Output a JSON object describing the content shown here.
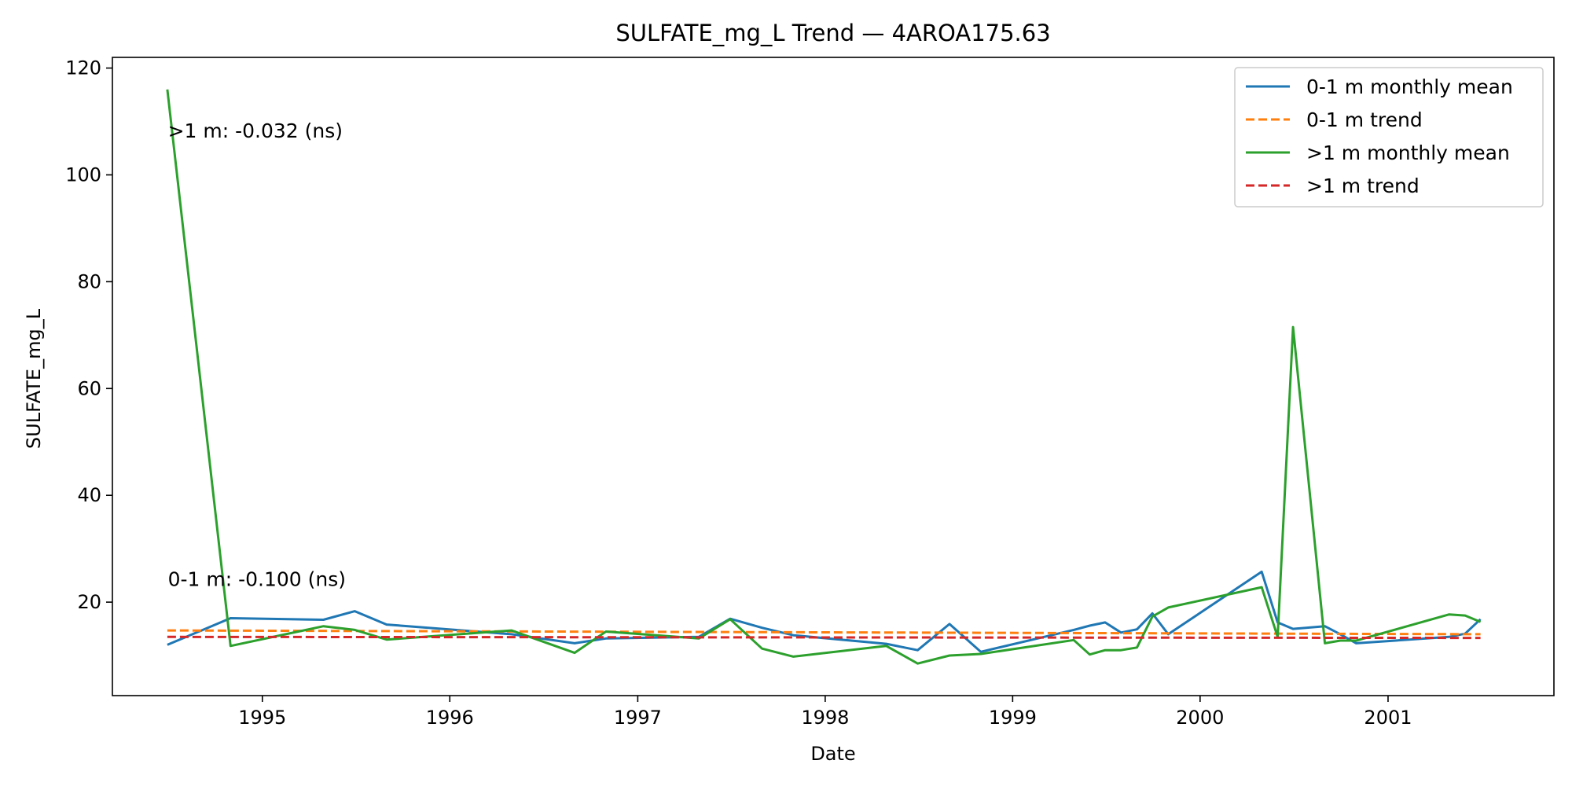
{
  "chart_data": {
    "type": "line",
    "title": "SULFATE_mg_L Trend — 4AROA175.63",
    "xlabel": "Date",
    "ylabel": "SULFATE_mg_L",
    "xlim": [
      "1994-03-15",
      "2001-11-20"
    ],
    "ylim": [
      2.5,
      122
    ],
    "xticks": [
      {
        "date": "1995-01-01",
        "label": "1995"
      },
      {
        "date": "1996-01-01",
        "label": "1996"
      },
      {
        "date": "1997-01-01",
        "label": "1997"
      },
      {
        "date": "1998-01-01",
        "label": "1998"
      },
      {
        "date": "1999-01-01",
        "label": "1999"
      },
      {
        "date": "2000-01-01",
        "label": "2000"
      },
      {
        "date": "2001-01-01",
        "label": "2001"
      }
    ],
    "yticks": [
      20,
      40,
      60,
      80,
      100,
      120
    ],
    "grid": false,
    "legend_position": "top-right",
    "annotations": [
      {
        "text": ">1 m: -0.032 (ns)",
        "x": "1994-07-01",
        "y": 107
      },
      {
        "text": "0-1 m: -0.100 (ns)",
        "x": "1994-07-01",
        "y": 23
      }
    ],
    "series": [
      {
        "name": "0-1 m monthly mean",
        "color": "#1f77b4",
        "style": "solid",
        "x": [
          "1994-06-30",
          "1994-10-31",
          "1995-04-30",
          "1995-06-30",
          "1995-08-31",
          "1996-04-30",
          "1996-08-31",
          "1996-10-31",
          "1997-04-30",
          "1997-06-30",
          "1997-08-31",
          "1997-10-31",
          "1998-04-30",
          "1998-06-30",
          "1998-08-31",
          "1998-10-31",
          "1999-04-30",
          "1999-05-31",
          "1999-06-30",
          "1999-07-31",
          "1999-08-31",
          "1999-09-30",
          "1999-10-31",
          "2000-04-30",
          "2000-05-31",
          "2000-06-30",
          "2000-08-31",
          "2000-09-30",
          "2000-10-31",
          "2001-04-30",
          "2001-05-31",
          "2001-06-30"
        ],
        "y": [
          12.0,
          17.0,
          16.7,
          18.3,
          15.8,
          14.0,
          12.3,
          13.2,
          13.5,
          16.9,
          15.2,
          13.8,
          12.2,
          11.0,
          15.9,
          10.7,
          14.8,
          15.6,
          16.2,
          14.3,
          14.9,
          17.9,
          14.0,
          25.7,
          16.2,
          15.0,
          15.5,
          14.0,
          12.3,
          13.5,
          14.1,
          16.8
        ]
      },
      {
        "name": "0-1 m trend",
        "color": "#ff7f0e",
        "style": "dashed",
        "x": [
          "1994-06-30",
          "2001-06-30"
        ],
        "y": [
          14.7,
          14.0
        ]
      },
      {
        "name": ">1 m monthly mean",
        "color": "#2ca02c",
        "style": "solid",
        "x": [
          "1994-06-30",
          "1994-10-31",
          "1995-04-30",
          "1995-06-30",
          "1995-08-31",
          "1996-04-30",
          "1996-08-31",
          "1996-10-31",
          "1997-04-30",
          "1997-06-30",
          "1997-08-31",
          "1997-10-31",
          "1998-04-30",
          "1998-06-30",
          "1998-08-31",
          "1998-10-31",
          "1999-04-30",
          "1999-05-31",
          "1999-06-30",
          "1999-07-31",
          "1999-08-31",
          "1999-09-30",
          "1999-10-31",
          "2000-04-30",
          "2000-05-31",
          "2000-06-30",
          "2000-08-31",
          "2000-09-30",
          "2000-10-31",
          "2001-04-30",
          "2001-05-31",
          "2001-06-30"
        ],
        "y": [
          116,
          11.8,
          15.5,
          14.8,
          13.0,
          14.7,
          10.5,
          14.5,
          13.2,
          16.8,
          11.3,
          9.8,
          11.8,
          8.5,
          10.0,
          10.3,
          12.9,
          10.2,
          11.0,
          11.0,
          11.5,
          17.3,
          19.0,
          22.8,
          13.5,
          71.5,
          12.3,
          12.8,
          12.8,
          17.7,
          17.5,
          16.3
        ]
      },
      {
        "name": ">1 m trend",
        "color": "#d62728",
        "style": "dashed",
        "x": [
          "1994-06-30",
          "2001-06-30"
        ],
        "y": [
          13.5,
          13.3
        ]
      }
    ]
  }
}
